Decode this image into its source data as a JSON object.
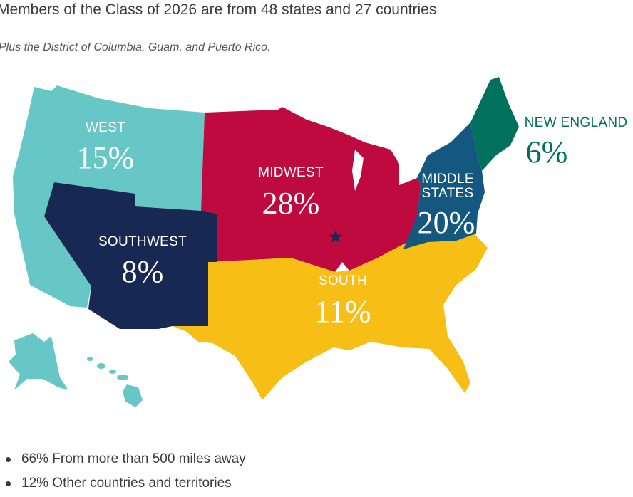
{
  "header": {
    "title": "Members of the Class of 2026 are from 48 states and 27 countries",
    "subtitle": "Plus the District of Columbia, Guam, and Puerto Rico."
  },
  "regions": {
    "west": {
      "name": "WEST",
      "percent": "15%",
      "color": "#67c7c7"
    },
    "southwest": {
      "name": "SOUTHWEST",
      "percent": "8%",
      "color": "#172852"
    },
    "midwest": {
      "name": "MIDWEST",
      "percent": "28%",
      "color": "#bf0a3f"
    },
    "south": {
      "name": "SOUTH",
      "percent": "11%",
      "color": "#f7be16"
    },
    "middle_states": {
      "name_line1": "MIDDLE",
      "name_line2": "STATES",
      "percent": "20%",
      "color": "#14587f"
    },
    "new_england": {
      "name": "NEW ENGLAND",
      "percent": "6%",
      "color": "#01705c"
    }
  },
  "marker": {
    "icon": "star-icon",
    "color": "#172852"
  },
  "bullets": [
    "66% From more than 500 miles away",
    "12% Other countries and territories"
  ]
}
